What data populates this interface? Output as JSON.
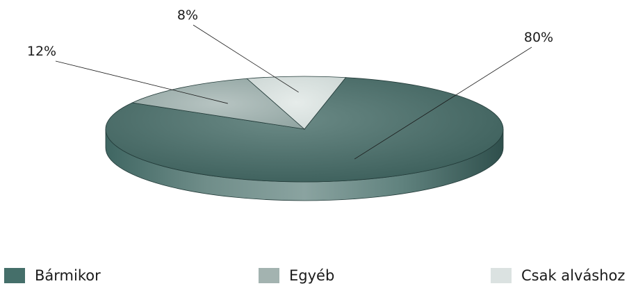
{
  "chart_data": {
    "type": "pie",
    "style": "3d",
    "categories": [
      "Bármikor",
      "Egyéb",
      "Csak alváshoz"
    ],
    "values": [
      80,
      12,
      8
    ],
    "labels": [
      "80%",
      "12%",
      "8%"
    ],
    "colors": [
      "#456f6a",
      "#a3b3b0",
      "#dbe2e1"
    ],
    "legend_position": "bottom"
  }
}
